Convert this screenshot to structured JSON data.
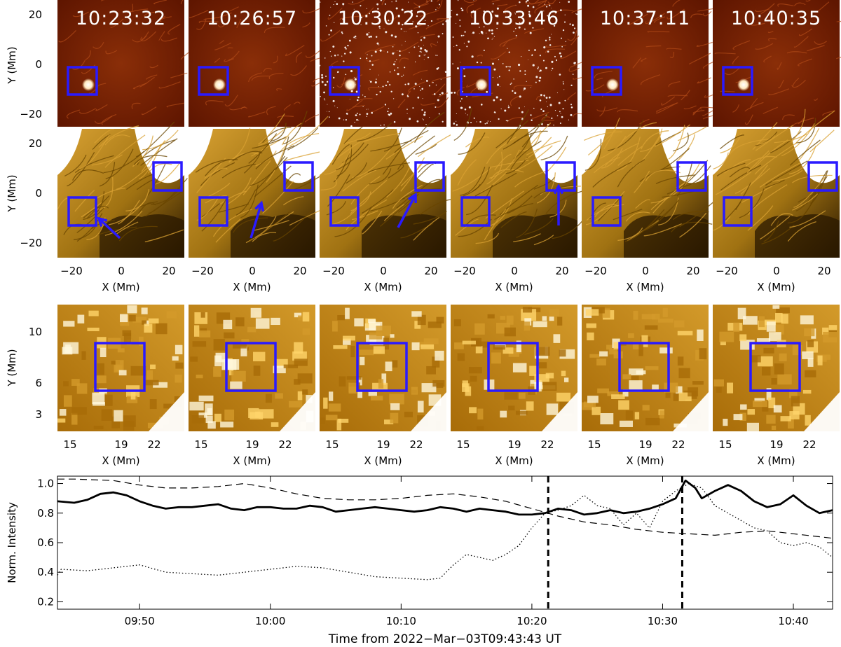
{
  "figure": {
    "colors": {
      "aia_red": [
        "#2a0400",
        "#5e1500",
        "#8a2e08",
        "#b04a18"
      ],
      "eui_gold": [
        "#2a1800",
        "#6a4600",
        "#a07212",
        "#d9a233",
        "#ffffff"
      ],
      "zoom_gold": [
        "#a86c08",
        "#d39a2a",
        "#ffd56a",
        "#fff7dc"
      ],
      "box": "#2a1aff",
      "arrow": "#2a1aff",
      "time_label": "#ffffff"
    },
    "rows": [
      {
        "id": "aia",
        "panel_times": [
          "10:23:32",
          "10:26:57",
          "10:30:22",
          "10:33:46",
          "10:37:11",
          "10:40:35"
        ]
      },
      {
        "id": "eui"
      },
      {
        "id": "zoom"
      }
    ],
    "row1_axes": {
      "ylabel": "Y (Mm)",
      "yticks": [
        "20",
        "0",
        "−20"
      ]
    },
    "row2_axes": {
      "ylabel": "Y (Mm)",
      "yticks": [
        "20",
        "0",
        "−20"
      ],
      "xlabel": "X (Mm)",
      "xticks": [
        "−20",
        "0",
        "20"
      ]
    },
    "row3_axes": {
      "ylabel": "Y (Mm)",
      "yticks": [
        "10",
        "6",
        "3"
      ],
      "xlabel": "X (Mm)",
      "xticks": [
        "15",
        "19",
        "22"
      ]
    }
  },
  "chart_data": {
    "type": "line",
    "xlabel": "Time from 2022−Mar−03T09:43:43 UT",
    "ylabel": "Norm. Intensity",
    "xlim": [
      "09:43:43",
      "10:43:00"
    ],
    "ylim": [
      0.15,
      1.05
    ],
    "xticks": [
      "09:50",
      "10:00",
      "10:10",
      "10:20",
      "10:30",
      "10:40"
    ],
    "yticks": [
      "0.2",
      "0.4",
      "0.6",
      "0.8",
      "1.0"
    ],
    "vertical_lines": [
      "10:21:15",
      "10:31:30"
    ],
    "series": [
      {
        "style": "solid",
        "x": [
          "09:43:43",
          "09:45",
          "09:46",
          "09:47",
          "09:48",
          "09:49",
          "09:50",
          "09:51",
          "09:52",
          "09:53",
          "09:54",
          "09:55",
          "09:56",
          "09:57",
          "09:58",
          "09:59",
          "10:00",
          "10:01",
          "10:02",
          "10:03",
          "10:04",
          "10:05",
          "10:06",
          "10:07",
          "10:08",
          "10:09",
          "10:10",
          "10:11",
          "10:12",
          "10:13",
          "10:14",
          "10:15",
          "10:16",
          "10:17",
          "10:18",
          "10:19",
          "10:20",
          "10:21",
          "10:22",
          "10:23",
          "10:24",
          "10:25",
          "10:26",
          "10:27",
          "10:28",
          "10:29",
          "10:30",
          "10:31",
          "10:31:45",
          "10:32:30",
          "10:33",
          "10:34",
          "10:35",
          "10:36",
          "10:37",
          "10:38",
          "10:39",
          "10:40",
          "10:41",
          "10:42",
          "10:43"
        ],
        "values": [
          0.88,
          0.87,
          0.89,
          0.93,
          0.94,
          0.92,
          0.88,
          0.85,
          0.83,
          0.84,
          0.84,
          0.85,
          0.86,
          0.83,
          0.82,
          0.84,
          0.84,
          0.83,
          0.83,
          0.85,
          0.84,
          0.81,
          0.82,
          0.83,
          0.84,
          0.83,
          0.82,
          0.81,
          0.82,
          0.84,
          0.83,
          0.81,
          0.83,
          0.82,
          0.81,
          0.79,
          0.79,
          0.8,
          0.83,
          0.82,
          0.79,
          0.8,
          0.82,
          0.8,
          0.81,
          0.83,
          0.86,
          0.9,
          1.02,
          0.97,
          0.9,
          0.95,
          0.99,
          0.95,
          0.88,
          0.84,
          0.86,
          0.92,
          0.85,
          0.8,
          0.82
        ]
      },
      {
        "style": "dashed",
        "x": [
          "09:43:43",
          "09:45",
          "09:48",
          "09:50",
          "09:52",
          "09:54",
          "09:56",
          "09:58",
          "10:00",
          "10:02",
          "10:04",
          "10:06",
          "10:08",
          "10:10",
          "10:12",
          "10:14",
          "10:16",
          "10:18",
          "10:20",
          "10:22",
          "10:24",
          "10:26",
          "10:28",
          "10:30",
          "10:32",
          "10:34",
          "10:36",
          "10:38",
          "10:40",
          "10:43"
        ],
        "values": [
          1.03,
          1.03,
          1.02,
          0.99,
          0.97,
          0.97,
          0.98,
          1.0,
          0.97,
          0.93,
          0.9,
          0.89,
          0.89,
          0.9,
          0.92,
          0.93,
          0.91,
          0.88,
          0.83,
          0.78,
          0.74,
          0.72,
          0.69,
          0.67,
          0.66,
          0.65,
          0.67,
          0.68,
          0.66,
          0.63
        ]
      },
      {
        "style": "dotted",
        "x": [
          "09:43:43",
          "09:44",
          "09:46",
          "09:48",
          "09:50",
          "09:52",
          "09:54",
          "09:56",
          "09:58",
          "10:00",
          "10:02",
          "10:04",
          "10:06",
          "10:08",
          "10:10",
          "10:12",
          "10:13",
          "10:14",
          "10:15",
          "10:16",
          "10:17",
          "10:18",
          "10:19",
          "10:20",
          "10:21",
          "10:22",
          "10:23",
          "10:24",
          "10:25",
          "10:26",
          "10:27",
          "10:28",
          "10:29",
          "10:30",
          "10:31",
          "10:32",
          "10:33",
          "10:34",
          "10:35",
          "10:36",
          "10:37",
          "10:38",
          "10:39",
          "10:40",
          "10:41",
          "10:42",
          "10:43"
        ],
        "values": [
          0.38,
          0.42,
          0.41,
          0.43,
          0.45,
          0.4,
          0.39,
          0.38,
          0.4,
          0.42,
          0.44,
          0.43,
          0.4,
          0.37,
          0.36,
          0.35,
          0.36,
          0.45,
          0.52,
          0.5,
          0.48,
          0.52,
          0.58,
          0.7,
          0.8,
          0.82,
          0.85,
          0.92,
          0.85,
          0.83,
          0.72,
          0.8,
          0.7,
          0.88,
          0.95,
          1.0,
          0.97,
          0.85,
          0.8,
          0.75,
          0.7,
          0.68,
          0.6,
          0.58,
          0.6,
          0.57,
          0.5
        ]
      }
    ]
  }
}
